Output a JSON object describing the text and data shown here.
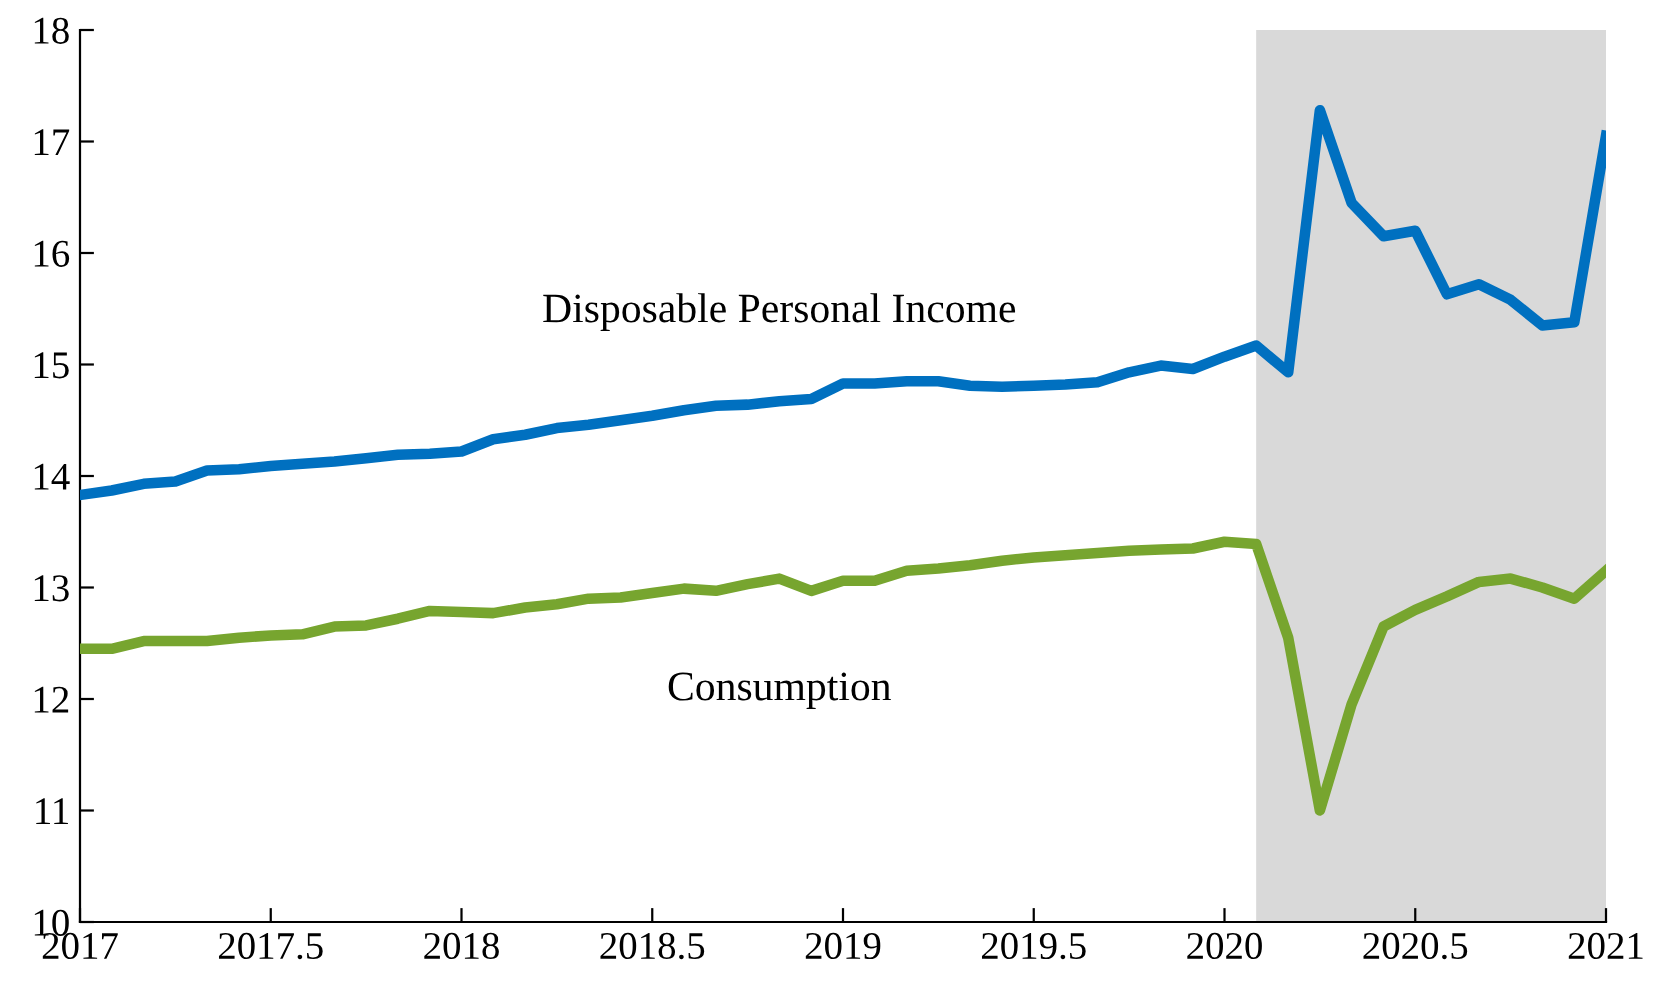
{
  "chart_data": {
    "type": "line",
    "x": [
      2017.0,
      2017.083,
      2017.167,
      2017.25,
      2017.333,
      2017.417,
      2017.5,
      2017.583,
      2017.667,
      2017.75,
      2017.833,
      2017.917,
      2018.0,
      2018.083,
      2018.167,
      2018.25,
      2018.333,
      2018.417,
      2018.5,
      2018.583,
      2018.667,
      2018.75,
      2018.833,
      2018.917,
      2019.0,
      2019.083,
      2019.167,
      2019.25,
      2019.333,
      2019.417,
      2019.5,
      2019.583,
      2019.667,
      2019.75,
      2019.833,
      2019.917,
      2020.0,
      2020.083,
      2020.167,
      2020.25,
      2020.333,
      2020.417,
      2020.5,
      2020.583,
      2020.667,
      2020.75,
      2020.833,
      2020.917,
      2021.0
    ],
    "series": [
      {
        "name": "Disposable Personal Income",
        "color": "#0070c0",
        "values": [
          13.83,
          13.87,
          13.93,
          13.95,
          14.05,
          14.06,
          14.09,
          14.11,
          14.13,
          14.16,
          14.19,
          14.2,
          14.22,
          14.33,
          14.37,
          14.43,
          14.46,
          14.5,
          14.54,
          14.59,
          14.63,
          14.64,
          14.67,
          14.69,
          14.83,
          14.83,
          14.85,
          14.85,
          14.81,
          14.8,
          14.81,
          14.82,
          14.84,
          14.93,
          14.99,
          14.96,
          15.07,
          15.17,
          14.93,
          17.28,
          16.45,
          16.15,
          16.2,
          15.63,
          15.72,
          15.58,
          15.35,
          15.38,
          17.05
        ]
      },
      {
        "name": "Consumption",
        "color": "#77a52f",
        "values": [
          12.45,
          12.45,
          12.52,
          12.52,
          12.52,
          12.55,
          12.57,
          12.58,
          12.65,
          12.66,
          12.72,
          12.79,
          12.78,
          12.77,
          12.82,
          12.85,
          12.9,
          12.91,
          12.95,
          12.99,
          12.97,
          13.03,
          13.08,
          12.97,
          13.06,
          13.06,
          13.15,
          13.17,
          13.2,
          13.24,
          13.27,
          13.29,
          13.31,
          13.33,
          13.34,
          13.35,
          13.41,
          13.39,
          12.55,
          11.0,
          11.95,
          12.65,
          12.8,
          12.92,
          13.05,
          13.08,
          13.0,
          12.9,
          13.15
        ]
      }
    ],
    "xlim": [
      2017,
      2021
    ],
    "xticks": [
      2017,
      2017.5,
      2018,
      2018.5,
      2019,
      2019.5,
      2020,
      2020.5,
      2021
    ],
    "ylim": [
      10,
      18
    ],
    "yticks": [
      10,
      11,
      12,
      13,
      14,
      15,
      16,
      17,
      18
    ],
    "bands": [
      {
        "axis": "x",
        "from": 2020.083,
        "to": 2021,
        "color": "#d9d9d9"
      }
    ],
    "grid": false,
    "legend": false,
    "marker": "none",
    "line_style": "solid"
  }
}
